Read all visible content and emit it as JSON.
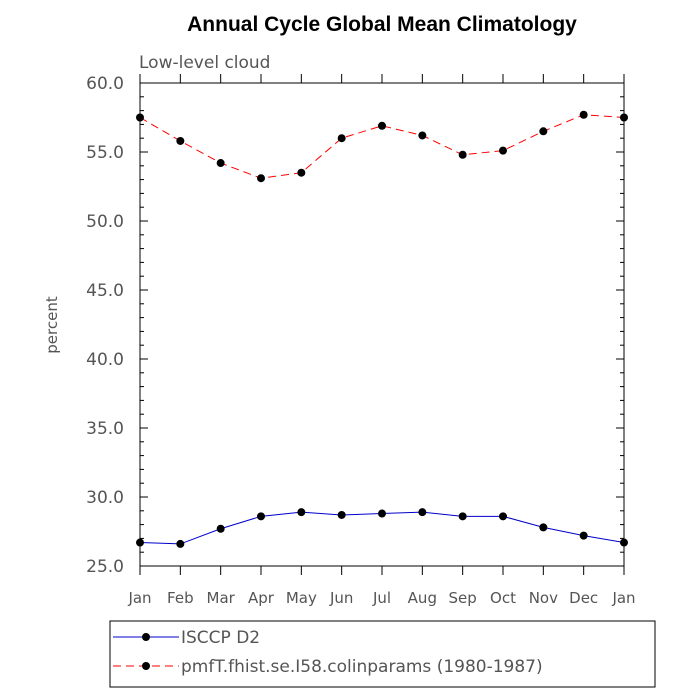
{
  "chart_data": {
    "type": "line",
    "title": "Annual Cycle Global Mean Climatology",
    "subtitle": "Low-level cloud",
    "xlabel": "",
    "ylabel": "percent",
    "categories": [
      "Jan",
      "Feb",
      "Mar",
      "Apr",
      "May",
      "Jun",
      "Jul",
      "Aug",
      "Sep",
      "Oct",
      "Nov",
      "Dec",
      "Jan"
    ],
    "ylim": [
      25.0,
      60.0
    ],
    "yticks": [
      "25.0",
      "30.0",
      "35.0",
      "40.0",
      "45.0",
      "50.0",
      "55.0",
      "60.0"
    ],
    "grid": false,
    "legend_position": "bottom",
    "series": [
      {
        "name": "ISCCP D2",
        "style": "solid",
        "color": "#0000cc",
        "values": [
          26.7,
          26.6,
          27.7,
          28.6,
          28.9,
          28.7,
          28.8,
          28.9,
          28.6,
          28.6,
          27.8,
          27.2,
          26.7
        ]
      },
      {
        "name": "pmfT.fhist.se.I58.colinparams (1980-1987)",
        "style": "dashed",
        "color": "#ff0000",
        "values": [
          57.5,
          55.8,
          54.2,
          53.1,
          53.5,
          56.0,
          56.9,
          56.2,
          54.8,
          55.1,
          56.5,
          57.7,
          57.5
        ]
      }
    ]
  }
}
